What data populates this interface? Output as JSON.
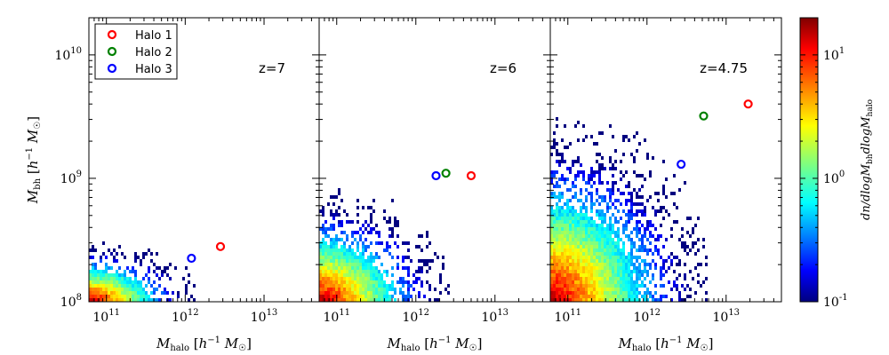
{
  "chart_data": {
    "type": "heatmap",
    "x_axis": {
      "label": "M_halo [h^-1 M_sun]",
      "scale": "log",
      "range": [
        60000000000,
        50000000000000
      ],
      "ticks": [
        {
          "value": 100000000000,
          "base": "10",
          "exp": "11"
        },
        {
          "value": 1000000000000,
          "base": "10",
          "exp": "12"
        },
        {
          "value": 10000000000000,
          "base": "10",
          "exp": "13"
        }
      ]
    },
    "y_axis": {
      "label": "M_bh [h^-1 M_sun]",
      "scale": "log",
      "range": [
        100000000,
        20000000000
      ],
      "ticks": [
        {
          "value": 100000000,
          "base": "10",
          "exp": "8"
        },
        {
          "value": 1000000000,
          "base": "10",
          "exp": "9"
        },
        {
          "value": 10000000000,
          "base": "10",
          "exp": "10"
        }
      ]
    },
    "colorbar": {
      "label": "dn/dlogM_bh dlogM_halo",
      "scale": "log",
      "range": [
        0.1,
        20
      ],
      "ticks": [
        {
          "value": 0.1,
          "base": "10",
          "exp": "-1"
        },
        {
          "value": 1,
          "base": "10",
          "exp": "0"
        },
        {
          "value": 10,
          "base": "10",
          "exp": "1"
        }
      ]
    },
    "legend": {
      "placement": "top-left",
      "entries": [
        {
          "name": "Halo 1",
          "color": "#ff0000"
        },
        {
          "name": "Halo 2",
          "color": "#008000"
        },
        {
          "name": "Halo 3",
          "color": "#0000ff"
        }
      ]
    },
    "panels": [
      {
        "label": "z=7",
        "halos": [
          {
            "name": "Halo 1",
            "x": 2800000000000,
            "y": 280000000
          },
          {
            "name": "Halo 3",
            "x": 1200000000000,
            "y": 225000000
          }
        ],
        "distribution": {
          "xmin": 60000000000,
          "xmax": 1300000000000,
          "ymin": 100000000,
          "ymax": 320000000
        }
      },
      {
        "label": "z=6",
        "halos": [
          {
            "name": "Halo 1",
            "x": 5000000000000,
            "y": 1050000000
          },
          {
            "name": "Halo 2",
            "x": 2400000000000,
            "y": 1100000000
          },
          {
            "name": "Halo 3",
            "x": 1800000000000,
            "y": 1050000000
          }
        ],
        "distribution": {
          "xmin": 60000000000,
          "xmax": 2500000000000,
          "ymin": 100000000,
          "ymax": 800000000
        }
      },
      {
        "label": "z=4.75",
        "halos": [
          {
            "name": "Halo 1",
            "x": 19000000000000,
            "y": 4000000000
          },
          {
            "name": "Halo 2",
            "x": 5200000000000,
            "y": 3200000000
          },
          {
            "name": "Halo 3",
            "x": 2700000000000,
            "y": 1300000000
          }
        ],
        "distribution": {
          "xmin": 60000000000,
          "xmax": 5500000000000,
          "ymin": 100000000,
          "ymax": 3000000000
        }
      }
    ]
  }
}
